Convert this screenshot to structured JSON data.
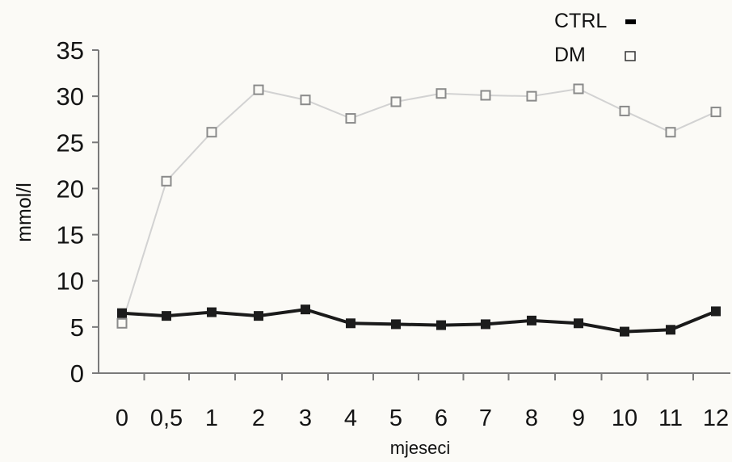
{
  "chart_data": {
    "type": "line",
    "xlabel": "mjeseci",
    "ylabel": "mmol/l",
    "ylim": [
      0,
      35
    ],
    "yticks": [
      "0",
      "5",
      "10",
      "15",
      "20",
      "25",
      "30",
      "35"
    ],
    "categories": [
      "0",
      "0,5",
      "1",
      "2",
      "3",
      "4",
      "5",
      "6",
      "7",
      "8",
      "9",
      "10",
      "11",
      "12"
    ],
    "grid": false,
    "legend_position": "top-right",
    "series": [
      {
        "name": "CTRL",
        "marker": "filled-square",
        "color": "#151515",
        "values": [
          6.5,
          6.2,
          6.6,
          6.2,
          6.9,
          5.4,
          5.3,
          5.2,
          5.3,
          5.7,
          5.4,
          4.5,
          4.7,
          6.7
        ]
      },
      {
        "name": "DM",
        "marker": "open-square",
        "color": "#bdbdbd",
        "values": [
          5.4,
          20.8,
          26.1,
          30.7,
          29.6,
          27.6,
          29.4,
          30.3,
          30.1,
          30.0,
          30.8,
          28.4,
          26.1,
          28.3
        ]
      }
    ]
  }
}
